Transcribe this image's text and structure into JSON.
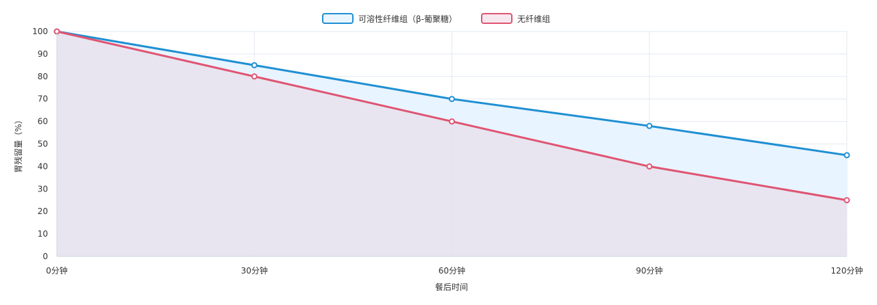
{
  "chart_data": {
    "type": "line",
    "title": "",
    "xlabel": "餐后时间",
    "ylabel": "胃残留量（%）",
    "categories": [
      "0分钟",
      "30分钟",
      "60分钟",
      "90分钟",
      "120分钟"
    ],
    "ylim": [
      0,
      100
    ],
    "yticks": [
      0,
      10,
      20,
      30,
      40,
      50,
      60,
      70,
      80,
      90,
      100
    ],
    "grid": true,
    "legend_position": "top-center",
    "series": [
      {
        "name": "可溶性纤维组（β-葡聚糖）",
        "values": [
          100,
          85,
          70,
          58,
          45
        ],
        "color": "#1f8fd2",
        "fill": "#e8f4ff"
      },
      {
        "name": "无纤维组",
        "values": [
          100,
          80,
          60,
          40,
          25
        ],
        "color": "#e05472",
        "fill": "#e6e2ee"
      }
    ]
  }
}
